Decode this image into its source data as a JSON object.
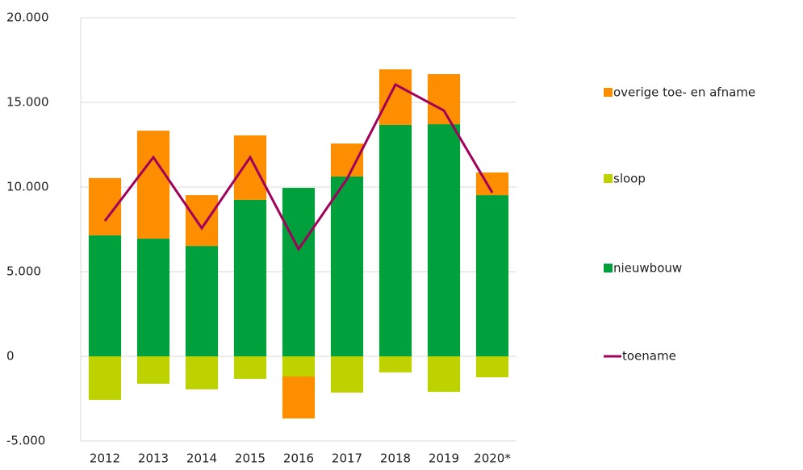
{
  "chart_data": {
    "type": "bar",
    "categories": [
      "2012",
      "2013",
      "2014",
      "2015",
      "2016",
      "2017",
      "2018",
      "2019",
      "2020*"
    ],
    "series": [
      {
        "name": "overige toe- en afname",
        "color": "#fd8e00",
        "values": [
          3380,
          6380,
          3000,
          3810,
          -2480,
          1950,
          3280,
          2960,
          1340
        ]
      },
      {
        "name": "sloop",
        "color": "#bed200",
        "values": [
          -2570,
          -1620,
          -1950,
          -1330,
          -1190,
          -2140,
          -950,
          -2100,
          -1240
        ]
      },
      {
        "name": "nieuwbouw",
        "color": "#00a03c",
        "values": [
          7150,
          6950,
          6520,
          9240,
          9950,
          10620,
          13670,
          13710,
          9520
        ]
      },
      {
        "name": "toename",
        "color": "#a3005c",
        "type": "line",
        "values": [
          8000,
          11760,
          7570,
          11760,
          6330,
          10480,
          16050,
          14520,
          9670
        ]
      }
    ],
    "ylim": [
      -5000,
      20000
    ],
    "yticks": [
      {
        "value": -5000,
        "label": "-5.000"
      },
      0,
      {
        "value": 5000,
        "label": "5.000"
      },
      {
        "value": 10000,
        "label": "10.000"
      },
      {
        "value": 15000,
        "label": "15.000"
      },
      {
        "value": 20000,
        "label": "20.000"
      }
    ],
    "grid": true,
    "stacked": true,
    "legend": "right"
  }
}
